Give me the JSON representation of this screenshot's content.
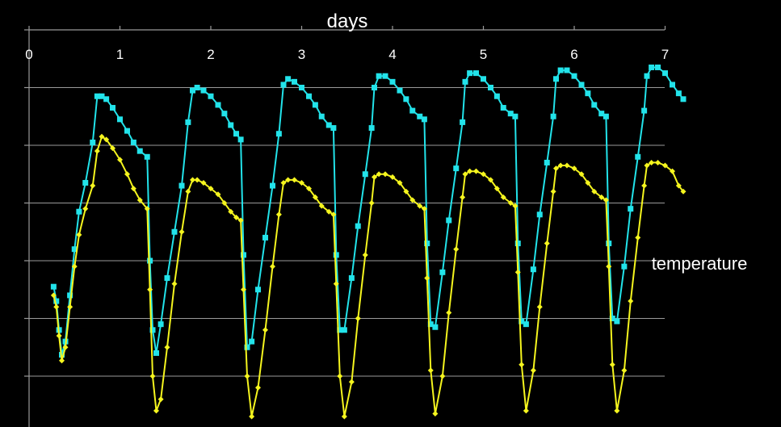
{
  "chart_data": {
    "type": "line",
    "xlabel": "days",
    "ylabel": "temperature",
    "xlim": [
      0,
      7.2
    ],
    "ylim": [
      0,
      7
    ],
    "x_ticks": [
      0,
      1,
      2,
      3,
      4,
      5,
      6,
      7
    ],
    "x_tick_labels": [
      "0",
      "1",
      "2",
      "3",
      "4",
      "5",
      "6",
      "7"
    ],
    "y_gridlines": [
      1,
      2,
      3,
      4,
      5,
      6,
      7
    ],
    "y_tick_labels_shown": false,
    "x_axis_position": "top",
    "grid": true,
    "legend": "none",
    "colors": {
      "background": "#000000",
      "cyan": "#22e3ea",
      "yellow": "#f5f51e",
      "grid": "#9a9a9a",
      "text": "#ffffff"
    },
    "series": [
      {
        "color": "#22e3ea",
        "marker": "square",
        "points": [
          [
            0.27,
            2.55
          ],
          [
            0.3,
            2.3
          ],
          [
            0.33,
            1.8
          ],
          [
            0.36,
            1.37
          ],
          [
            0.4,
            1.6
          ],
          [
            0.45,
            2.4
          ],
          [
            0.5,
            3.2
          ],
          [
            0.55,
            3.85
          ],
          [
            0.62,
            4.35
          ],
          [
            0.7,
            5.05
          ],
          [
            0.75,
            5.85
          ],
          [
            0.8,
            5.85
          ],
          [
            0.85,
            5.8
          ],
          [
            0.92,
            5.65
          ],
          [
            1.0,
            5.45
          ],
          [
            1.08,
            5.25
          ],
          [
            1.15,
            5.05
          ],
          [
            1.22,
            4.9
          ],
          [
            1.3,
            4.8
          ],
          [
            1.33,
            3.0
          ],
          [
            1.36,
            1.8
          ],
          [
            1.4,
            1.4
          ],
          [
            1.45,
            1.9
          ],
          [
            1.52,
            2.7
          ],
          [
            1.6,
            3.5
          ],
          [
            1.68,
            4.3
          ],
          [
            1.75,
            5.4
          ],
          [
            1.8,
            5.95
          ],
          [
            1.85,
            6.0
          ],
          [
            1.92,
            5.95
          ],
          [
            2.0,
            5.85
          ],
          [
            2.08,
            5.7
          ],
          [
            2.15,
            5.55
          ],
          [
            2.22,
            5.35
          ],
          [
            2.28,
            5.2
          ],
          [
            2.33,
            5.1
          ],
          [
            2.36,
            3.1
          ],
          [
            2.4,
            1.5
          ],
          [
            2.45,
            1.6
          ],
          [
            2.52,
            2.5
          ],
          [
            2.6,
            3.4
          ],
          [
            2.68,
            4.3
          ],
          [
            2.75,
            5.2
          ],
          [
            2.8,
            6.05
          ],
          [
            2.85,
            6.15
          ],
          [
            2.92,
            6.1
          ],
          [
            3.0,
            6.0
          ],
          [
            3.08,
            5.85
          ],
          [
            3.15,
            5.7
          ],
          [
            3.22,
            5.5
          ],
          [
            3.3,
            5.35
          ],
          [
            3.35,
            5.3
          ],
          [
            3.38,
            3.1
          ],
          [
            3.42,
            1.8
          ],
          [
            3.47,
            1.8
          ],
          [
            3.55,
            2.7
          ],
          [
            3.62,
            3.6
          ],
          [
            3.7,
            4.5
          ],
          [
            3.77,
            5.3
          ],
          [
            3.8,
            6.0
          ],
          [
            3.85,
            6.2
          ],
          [
            3.92,
            6.2
          ],
          [
            4.0,
            6.1
          ],
          [
            4.08,
            5.95
          ],
          [
            4.15,
            5.8
          ],
          [
            4.22,
            5.6
          ],
          [
            4.3,
            5.5
          ],
          [
            4.35,
            5.45
          ],
          [
            4.38,
            3.3
          ],
          [
            4.42,
            1.9
          ],
          [
            4.47,
            1.85
          ],
          [
            4.55,
            2.8
          ],
          [
            4.62,
            3.7
          ],
          [
            4.7,
            4.6
          ],
          [
            4.77,
            5.4
          ],
          [
            4.8,
            6.1
          ],
          [
            4.85,
            6.25
          ],
          [
            4.92,
            6.25
          ],
          [
            5.0,
            6.15
          ],
          [
            5.08,
            6.0
          ],
          [
            5.15,
            5.85
          ],
          [
            5.22,
            5.65
          ],
          [
            5.3,
            5.55
          ],
          [
            5.35,
            5.5
          ],
          [
            5.38,
            3.3
          ],
          [
            5.42,
            1.95
          ],
          [
            5.47,
            1.9
          ],
          [
            5.55,
            2.85
          ],
          [
            5.62,
            3.8
          ],
          [
            5.7,
            4.7
          ],
          [
            5.77,
            5.5
          ],
          [
            5.8,
            6.15
          ],
          [
            5.85,
            6.3
          ],
          [
            5.92,
            6.3
          ],
          [
            6.0,
            6.2
          ],
          [
            6.08,
            6.05
          ],
          [
            6.15,
            5.9
          ],
          [
            6.22,
            5.7
          ],
          [
            6.3,
            5.55
          ],
          [
            6.35,
            5.5
          ],
          [
            6.38,
            3.3
          ],
          [
            6.42,
            2.0
          ],
          [
            6.47,
            1.95
          ],
          [
            6.55,
            2.9
          ],
          [
            6.62,
            3.9
          ],
          [
            6.7,
            4.8
          ],
          [
            6.77,
            5.6
          ],
          [
            6.8,
            6.2
          ],
          [
            6.85,
            6.35
          ],
          [
            6.92,
            6.35
          ],
          [
            7.0,
            6.25
          ],
          [
            7.08,
            6.05
          ],
          [
            7.15,
            5.9
          ],
          [
            7.2,
            5.8
          ]
        ]
      },
      {
        "color": "#f5f51e",
        "marker": "diamond",
        "points": [
          [
            0.27,
            2.4
          ],
          [
            0.3,
            2.2
          ],
          [
            0.33,
            1.7
          ],
          [
            0.36,
            1.27
          ],
          [
            0.4,
            1.5
          ],
          [
            0.45,
            2.2
          ],
          [
            0.5,
            2.9
          ],
          [
            0.55,
            3.45
          ],
          [
            0.62,
            3.9
          ],
          [
            0.7,
            4.3
          ],
          [
            0.75,
            4.9
          ],
          [
            0.8,
            5.15
          ],
          [
            0.85,
            5.1
          ],
          [
            0.92,
            4.95
          ],
          [
            1.0,
            4.75
          ],
          [
            1.08,
            4.5
          ],
          [
            1.15,
            4.25
          ],
          [
            1.22,
            4.05
          ],
          [
            1.3,
            3.9
          ],
          [
            1.33,
            2.5
          ],
          [
            1.36,
            1.0
          ],
          [
            1.4,
            0.4
          ],
          [
            1.45,
            0.6
          ],
          [
            1.52,
            1.5
          ],
          [
            1.6,
            2.6
          ],
          [
            1.68,
            3.5
          ],
          [
            1.75,
            4.2
          ],
          [
            1.8,
            4.4
          ],
          [
            1.85,
            4.4
          ],
          [
            1.92,
            4.35
          ],
          [
            2.0,
            4.25
          ],
          [
            2.08,
            4.15
          ],
          [
            2.15,
            4.0
          ],
          [
            2.22,
            3.85
          ],
          [
            2.28,
            3.75
          ],
          [
            2.33,
            3.7
          ],
          [
            2.36,
            2.5
          ],
          [
            2.4,
            1.0
          ],
          [
            2.45,
            0.3
          ],
          [
            2.52,
            0.8
          ],
          [
            2.6,
            1.8
          ],
          [
            2.68,
            2.9
          ],
          [
            2.75,
            3.8
          ],
          [
            2.8,
            4.35
          ],
          [
            2.85,
            4.4
          ],
          [
            2.92,
            4.4
          ],
          [
            3.0,
            4.35
          ],
          [
            3.08,
            4.25
          ],
          [
            3.15,
            4.1
          ],
          [
            3.22,
            3.95
          ],
          [
            3.3,
            3.85
          ],
          [
            3.35,
            3.8
          ],
          [
            3.38,
            2.6
          ],
          [
            3.42,
            1.0
          ],
          [
            3.47,
            0.3
          ],
          [
            3.55,
            0.9
          ],
          [
            3.62,
            2.0
          ],
          [
            3.7,
            3.1
          ],
          [
            3.77,
            4.0
          ],
          [
            3.8,
            4.45
          ],
          [
            3.85,
            4.5
          ],
          [
            3.92,
            4.5
          ],
          [
            4.0,
            4.45
          ],
          [
            4.08,
            4.35
          ],
          [
            4.15,
            4.2
          ],
          [
            4.22,
            4.05
          ],
          [
            4.3,
            3.95
          ],
          [
            4.35,
            3.9
          ],
          [
            4.38,
            2.7
          ],
          [
            4.42,
            1.1
          ],
          [
            4.47,
            0.35
          ],
          [
            4.55,
            1.0
          ],
          [
            4.62,
            2.1
          ],
          [
            4.7,
            3.2
          ],
          [
            4.77,
            4.1
          ],
          [
            4.8,
            4.5
          ],
          [
            4.85,
            4.55
          ],
          [
            4.92,
            4.55
          ],
          [
            5.0,
            4.5
          ],
          [
            5.08,
            4.4
          ],
          [
            5.15,
            4.25
          ],
          [
            5.22,
            4.1
          ],
          [
            5.3,
            4.0
          ],
          [
            5.35,
            3.95
          ],
          [
            5.38,
            2.8
          ],
          [
            5.42,
            1.2
          ],
          [
            5.47,
            0.4
          ],
          [
            5.55,
            1.1
          ],
          [
            5.62,
            2.2
          ],
          [
            5.7,
            3.3
          ],
          [
            5.77,
            4.2
          ],
          [
            5.8,
            4.6
          ],
          [
            5.85,
            4.65
          ],
          [
            5.92,
            4.65
          ],
          [
            6.0,
            4.6
          ],
          [
            6.08,
            4.5
          ],
          [
            6.15,
            4.35
          ],
          [
            6.22,
            4.2
          ],
          [
            6.3,
            4.1
          ],
          [
            6.35,
            4.05
          ],
          [
            6.38,
            2.9
          ],
          [
            6.42,
            1.2
          ],
          [
            6.47,
            0.4
          ],
          [
            6.55,
            1.1
          ],
          [
            6.62,
            2.3
          ],
          [
            6.7,
            3.4
          ],
          [
            6.77,
            4.3
          ],
          [
            6.8,
            4.65
          ],
          [
            6.85,
            4.7
          ],
          [
            6.92,
            4.7
          ],
          [
            7.0,
            4.65
          ],
          [
            7.08,
            4.55
          ],
          [
            7.15,
            4.3
          ],
          [
            7.2,
            4.2
          ]
        ]
      }
    ]
  }
}
